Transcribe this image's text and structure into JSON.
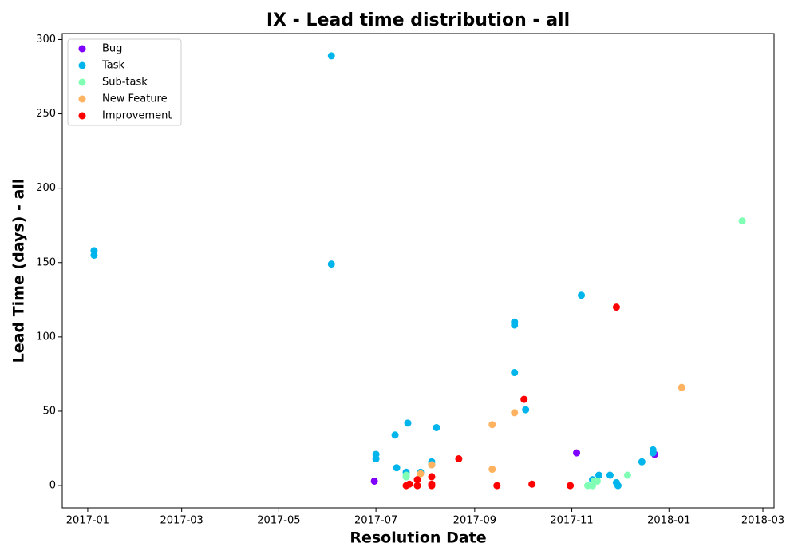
{
  "chart_data": {
    "type": "scatter",
    "title": "IX - Lead time distribution - all",
    "xlabel": "Resolution Date",
    "ylabel": "Lead Time (days) - all",
    "xlim": [
      "2016-12-16",
      "2018-03-08"
    ],
    "xticks": [
      "2017-01",
      "2017-03",
      "2017-05",
      "2017-07",
      "2017-09",
      "2017-11",
      "2018-01",
      "2018-03"
    ],
    "ylim": [
      -15,
      304
    ],
    "yticks": [
      0,
      50,
      100,
      150,
      200,
      250,
      300
    ],
    "legend": "upper left",
    "series": [
      {
        "name": "Bug",
        "color": "#8000ff",
        "x": [
          "2017-06-30",
          "2017-11-04",
          "2017-12-23"
        ],
        "values": [
          3,
          22,
          21
        ]
      },
      {
        "name": "Task",
        "color": "#00b5eb",
        "x": [
          "2017-01-05",
          "2017-01-05",
          "2017-06-03",
          "2017-06-03",
          "2017-07-01",
          "2017-07-01",
          "2017-07-13",
          "2017-07-14",
          "2017-07-21",
          "2017-07-20",
          "2017-07-20",
          "2017-07-29",
          "2017-08-05",
          "2017-08-05",
          "2017-08-08",
          "2017-09-26",
          "2017-09-26",
          "2017-09-26",
          "2017-10-03",
          "2017-11-07",
          "2017-11-14",
          "2017-11-18",
          "2017-11-25",
          "2017-11-29",
          "2017-11-30",
          "2017-12-15",
          "2017-12-22",
          "2017-12-22"
        ],
        "values": [
          158,
          155,
          289,
          149,
          21,
          18,
          34,
          12,
          42,
          9,
          6,
          9,
          16,
          14,
          39,
          110,
          108,
          76,
          51,
          128,
          4,
          7,
          7,
          2,
          0,
          16,
          24,
          22
        ]
      },
      {
        "name": "Sub-task",
        "color": "#80ffb4",
        "x": [
          "2017-07-20",
          "2017-07-20",
          "2017-11-11",
          "2017-11-14",
          "2017-11-15",
          "2017-11-17",
          "2017-12-06",
          "2018-02-16"
        ],
        "values": [
          7,
          6,
          0,
          0,
          3,
          3,
          7,
          178
        ]
      },
      {
        "name": "New Feature",
        "color": "#ffb360",
        "x": [
          "2017-07-29",
          "2017-08-05",
          "2017-09-12",
          "2017-09-12",
          "2017-09-26",
          "2018-01-09"
        ],
        "values": [
          8,
          14,
          41,
          11,
          49,
          66
        ]
      },
      {
        "name": "Improvement",
        "color": "#ff0000",
        "x": [
          "2017-07-20",
          "2017-07-22",
          "2017-07-27",
          "2017-07-27",
          "2017-08-05",
          "2017-08-05",
          "2017-08-05",
          "2017-08-22",
          "2017-09-15",
          "2017-10-02",
          "2017-10-07",
          "2017-10-31",
          "2017-11-29"
        ],
        "values": [
          0,
          1,
          4,
          0,
          6,
          1,
          0,
          18,
          0,
          58,
          1,
          0,
          120
        ]
      }
    ]
  }
}
